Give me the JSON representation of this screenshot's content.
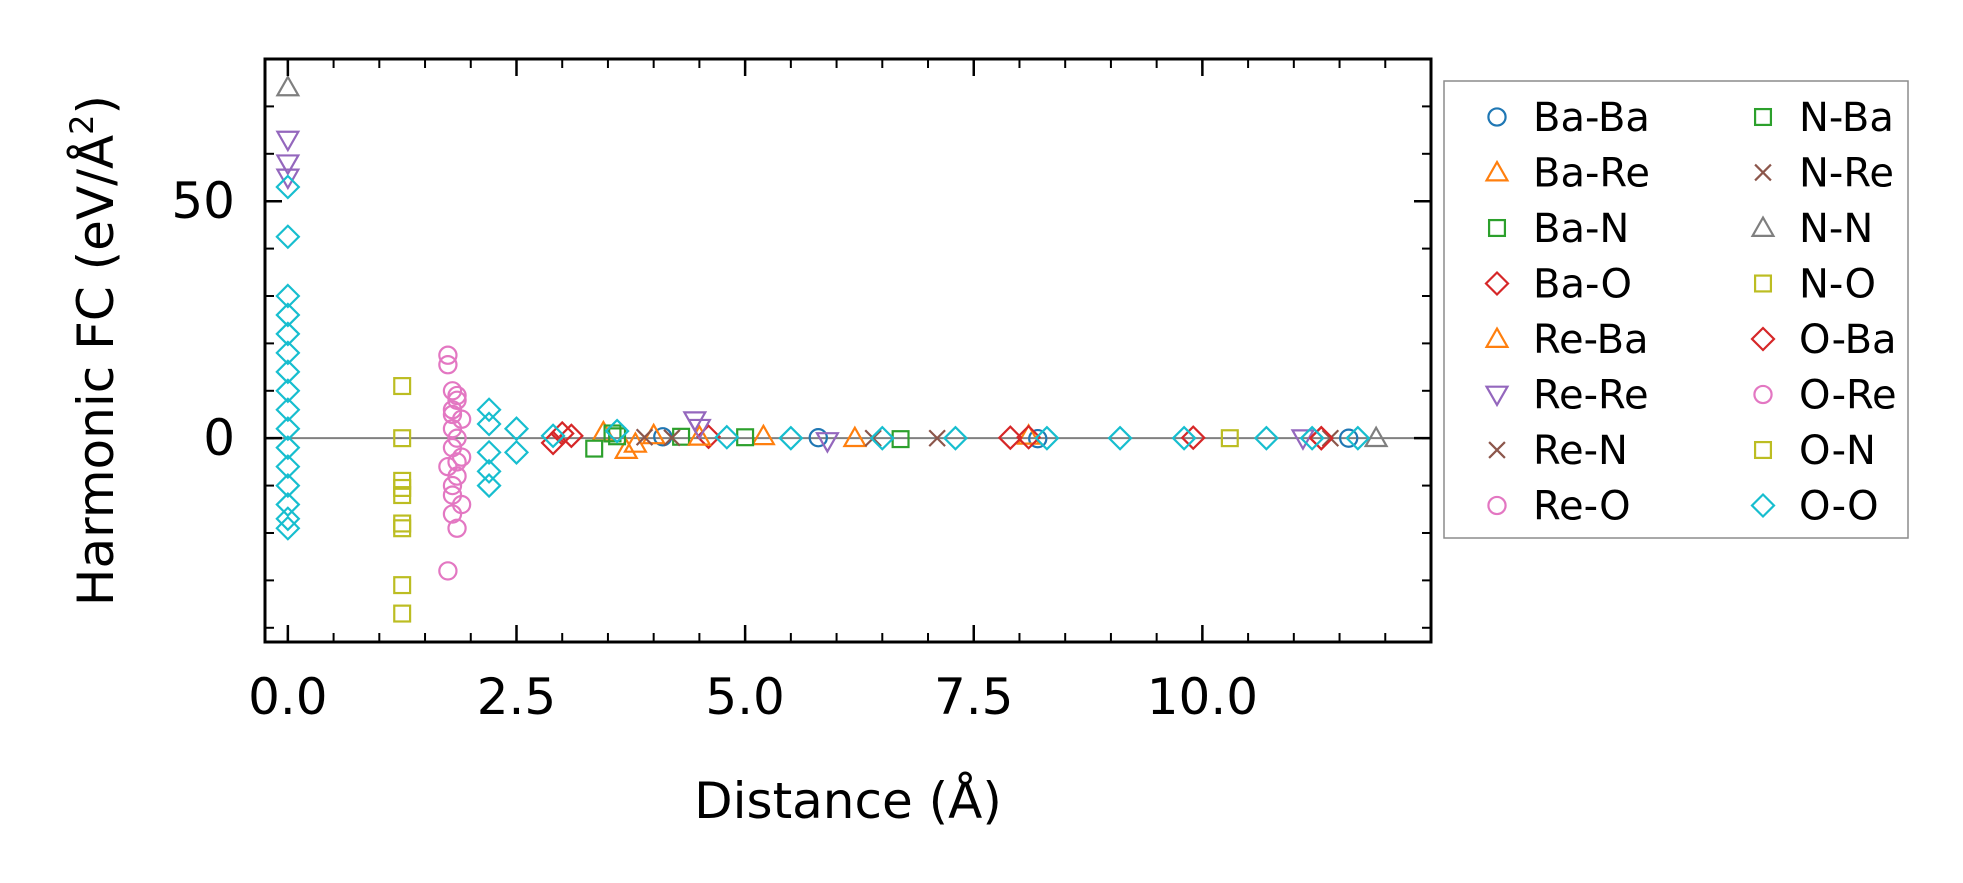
{
  "chart_data": {
    "type": "scatter",
    "title": "",
    "xlabel": "Distance (Å)",
    "ylabel_main": "Harmonic FC (eV/Å",
    "ylabel_sup": "2",
    "ylabel_close": ")",
    "xlim": [
      -0.25,
      12.5
    ],
    "ylim": [
      -43,
      80
    ],
    "x_ticks": [
      0.0,
      2.5,
      5.0,
      7.5,
      10.0
    ],
    "x_tick_labels": [
      "0.0",
      "2.5",
      "5.0",
      "7.5",
      "10.0"
    ],
    "y_ticks": [
      0,
      50
    ],
    "y_tick_labels": [
      "0",
      "50"
    ],
    "reference_line_y": 0,
    "legend_position": "outside-right",
    "series": [
      {
        "name": "Ba-Ba",
        "marker": "circle",
        "color": "#1f77b4",
        "points": [
          [
            4.1,
            0.3
          ],
          [
            5.8,
            0.1
          ],
          [
            8.2,
            -0.1
          ],
          [
            11.6,
            0.0
          ]
        ]
      },
      {
        "name": "Ba-Re",
        "marker": "triangle-up",
        "color": "#ff7f0e",
        "points": [
          [
            3.45,
            1.2
          ],
          [
            3.7,
            -2.5
          ],
          [
            4.0,
            0.6
          ],
          [
            5.2,
            0.4
          ],
          [
            8.1,
            0.5
          ]
        ]
      },
      {
        "name": "Ba-N",
        "marker": "square",
        "color": "#2ca02c",
        "points": [
          [
            3.35,
            -2.2
          ],
          [
            3.55,
            1.0
          ],
          [
            4.3,
            0.3
          ],
          [
            6.7,
            -0.2
          ]
        ]
      },
      {
        "name": "Ba-O",
        "marker": "diamond",
        "color": "#d62728",
        "points": [
          [
            2.9,
            -1.0
          ],
          [
            3.0,
            1.0
          ],
          [
            4.6,
            0.3
          ],
          [
            8.1,
            0.2
          ],
          [
            9.9,
            0.1
          ],
          [
            11.3,
            0.0
          ]
        ]
      },
      {
        "name": "Re-Ba",
        "marker": "triangle-up",
        "color": "#ff7f0e",
        "points": [
          [
            3.8,
            -1.2
          ],
          [
            4.5,
            0.3
          ],
          [
            6.2,
            0.0
          ]
        ]
      },
      {
        "name": "Re-Re",
        "marker": "triangle-down",
        "color": "#9467bd",
        "points": [
          [
            0.0,
            63.0
          ],
          [
            0.0,
            58.0
          ],
          [
            0.0,
            55.0
          ],
          [
            4.45,
            3.8
          ],
          [
            4.5,
            2.2
          ],
          [
            5.9,
            -0.6
          ],
          [
            11.1,
            0.0
          ]
        ]
      },
      {
        "name": "Re-N",
        "marker": "x",
        "color": "#8c564b",
        "points": [
          [
            3.9,
            0.2
          ],
          [
            6.4,
            0.0
          ],
          [
            11.4,
            0.0
          ]
        ]
      },
      {
        "name": "Re-O",
        "marker": "circle",
        "color": "#e377c2",
        "points": [
          [
            1.75,
            17.5
          ],
          [
            1.75,
            15.5
          ],
          [
            1.8,
            10.0
          ],
          [
            1.85,
            8.0
          ],
          [
            1.8,
            6.0
          ],
          [
            1.9,
            4.0
          ],
          [
            1.8,
            2.0
          ],
          [
            1.85,
            0.0
          ],
          [
            1.8,
            -2.0
          ],
          [
            1.9,
            -4.0
          ],
          [
            1.75,
            -6.0
          ],
          [
            1.85,
            -8.0
          ],
          [
            1.8,
            -10.0
          ],
          [
            1.9,
            -14.0
          ],
          [
            1.8,
            -16.0
          ],
          [
            1.85,
            -19.0
          ],
          [
            1.75,
            -28.0
          ]
        ]
      },
      {
        "name": "N-Ba",
        "marker": "square",
        "color": "#2ca02c",
        "points": [
          [
            3.6,
            0.4
          ],
          [
            5.0,
            0.2
          ]
        ]
      },
      {
        "name": "N-Re",
        "marker": "x",
        "color": "#8c564b",
        "points": [
          [
            4.2,
            0.1
          ],
          [
            7.1,
            0.0
          ]
        ]
      },
      {
        "name": "N-N",
        "marker": "triangle-up",
        "color": "#7f7f7f",
        "points": [
          [
            0.0,
            74.0
          ],
          [
            11.9,
            0.0
          ]
        ]
      },
      {
        "name": "N-O",
        "marker": "square",
        "color": "#bcbd22",
        "points": [
          [
            1.25,
            11.0
          ],
          [
            1.25,
            0.0
          ],
          [
            1.25,
            -9.0
          ],
          [
            1.25,
            -12.0
          ],
          [
            1.25,
            -18.0
          ],
          [
            1.25,
            -31.0
          ],
          [
            1.25,
            -37.0
          ],
          [
            10.3,
            0.0
          ]
        ]
      },
      {
        "name": "O-Ba",
        "marker": "diamond",
        "color": "#d62728",
        "points": [
          [
            3.1,
            0.5
          ],
          [
            7.9,
            0.1
          ],
          [
            11.3,
            0.0
          ]
        ]
      },
      {
        "name": "O-Re",
        "marker": "circle",
        "color": "#e377c2",
        "points": [
          [
            1.85,
            9.0
          ],
          [
            1.8,
            5.0
          ],
          [
            1.85,
            -5.0
          ],
          [
            1.8,
            -12.0
          ]
        ]
      },
      {
        "name": "O-N",
        "marker": "square",
        "color": "#bcbd22",
        "points": [
          [
            1.25,
            -10.5
          ],
          [
            1.25,
            -19.0
          ]
        ]
      },
      {
        "name": "O-O",
        "marker": "diamond",
        "color": "#17becf",
        "points": [
          [
            0.0,
            53.0
          ],
          [
            0.0,
            42.5
          ],
          [
            0.0,
            30.0
          ],
          [
            0.0,
            26.0
          ],
          [
            0.0,
            22.0
          ],
          [
            0.0,
            18.0
          ],
          [
            0.0,
            14.0
          ],
          [
            0.0,
            10.0
          ],
          [
            0.0,
            6.0
          ],
          [
            0.0,
            2.0
          ],
          [
            0.0,
            -2.0
          ],
          [
            0.0,
            -6.0
          ],
          [
            0.0,
            -10.0
          ],
          [
            0.0,
            -14.0
          ],
          [
            0.0,
            -17.0
          ],
          [
            0.0,
            -19.0
          ],
          [
            2.2,
            6.0
          ],
          [
            2.2,
            3.0
          ],
          [
            2.2,
            -3.0
          ],
          [
            2.2,
            -7.0
          ],
          [
            2.2,
            -10.0
          ],
          [
            2.5,
            2.0
          ],
          [
            2.5,
            -3.0
          ],
          [
            2.9,
            0.5
          ],
          [
            3.6,
            1.5
          ],
          [
            4.8,
            0.2
          ],
          [
            5.5,
            0.0
          ],
          [
            6.5,
            0.0
          ],
          [
            7.3,
            0.0
          ],
          [
            8.3,
            0.0
          ],
          [
            9.1,
            0.0
          ],
          [
            9.8,
            0.0
          ],
          [
            10.7,
            0.0
          ],
          [
            11.2,
            0.0
          ],
          [
            11.7,
            0.0
          ]
        ]
      }
    ]
  }
}
